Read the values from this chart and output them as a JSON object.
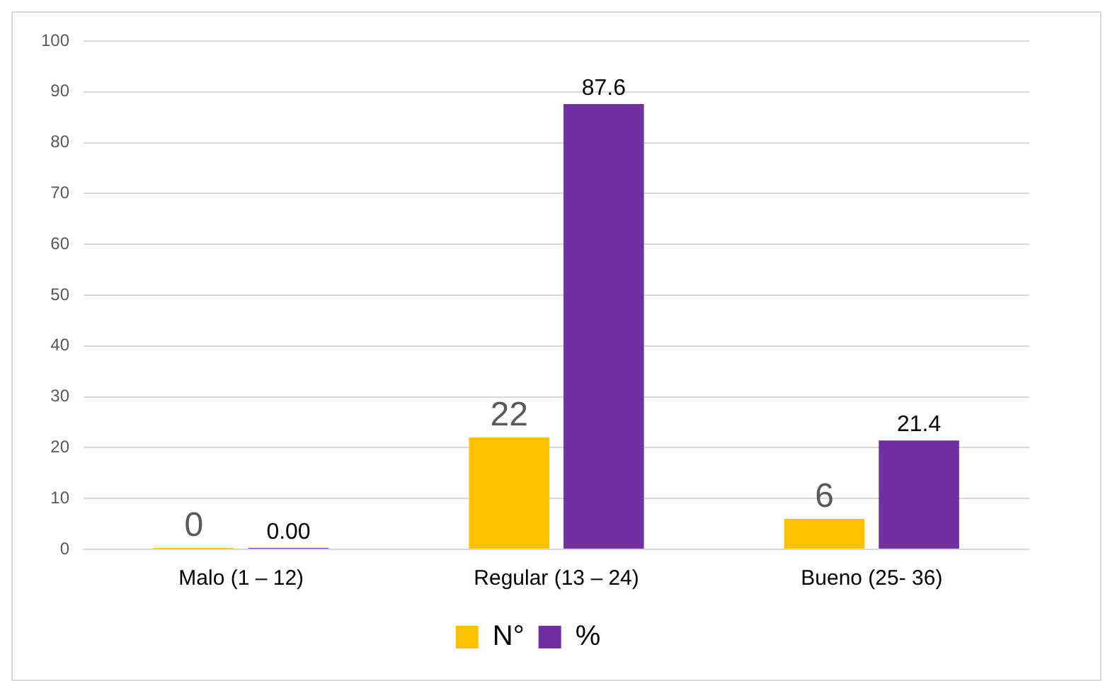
{
  "chart_data": {
    "type": "bar",
    "categories": [
      "Malo (1 – 12)",
      "Regular (13 – 24)",
      "Bueno (25- 36)"
    ],
    "series": [
      {
        "name": "N°",
        "color": "#ffc000",
        "values": [
          0,
          22,
          6
        ],
        "value_labels": [
          "0",
          "22",
          "6"
        ]
      },
      {
        "name": "%",
        "color": "#7030a0",
        "values": [
          0,
          87.6,
          21.4
        ],
        "value_labels": [
          "0.00",
          "87.6",
          "21.4"
        ]
      }
    ],
    "ylim": [
      0,
      100
    ],
    "yticks": [
      0,
      10,
      20,
      30,
      40,
      50,
      60,
      70,
      80,
      90,
      100
    ],
    "grid": "y",
    "legend": "bottom"
  }
}
